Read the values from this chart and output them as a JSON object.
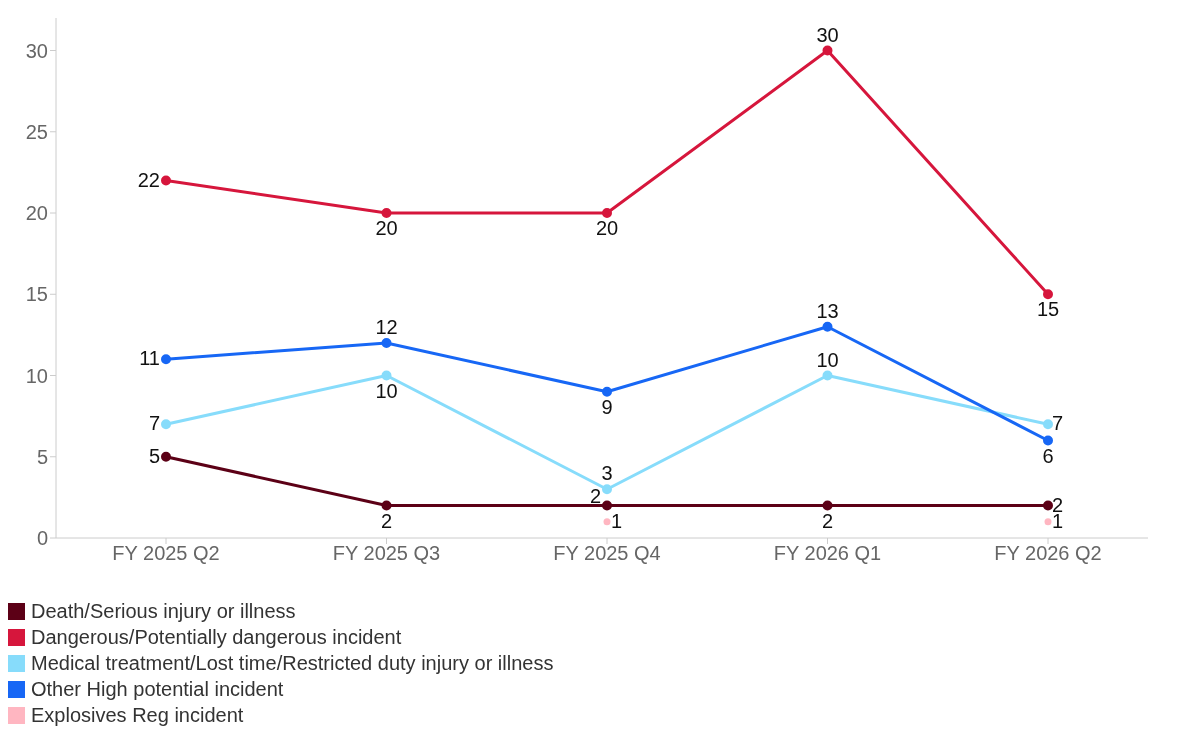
{
  "chart_data": {
    "type": "line",
    "categories": [
      "FY 2025 Q2",
      "FY 2025 Q3",
      "FY 2025 Q4",
      "FY 2026 Q1",
      "FY 2026 Q2"
    ],
    "ylim": [
      0,
      32
    ],
    "yticks": [
      0,
      5,
      10,
      15,
      20,
      25,
      30
    ],
    "grid": false,
    "legend": "bottom left",
    "marker": "circle",
    "data_labels": true,
    "series": [
      {
        "name": "Death/Serious injury or illness",
        "color": "#5c0016",
        "values": [
          5,
          2,
          2,
          2,
          2
        ]
      },
      {
        "name": "Dangerous/Potentially dangerous incident",
        "color": "#d6163c",
        "values": [
          22,
          20,
          20,
          30,
          15
        ]
      },
      {
        "name": "Medical treatment/Lost time/Restricted duty injury or illness",
        "color": "#87dcfb",
        "values": [
          7,
          10,
          3,
          10,
          7
        ]
      },
      {
        "name": "Other High potential incident",
        "color": "#1767f5",
        "values": [
          11,
          12,
          9,
          13,
          6
        ]
      },
      {
        "name": "Explosives Reg incident",
        "type": "scatter",
        "color": "#ffb6c1",
        "values": [
          null,
          null,
          1,
          null,
          1
        ]
      }
    ]
  }
}
